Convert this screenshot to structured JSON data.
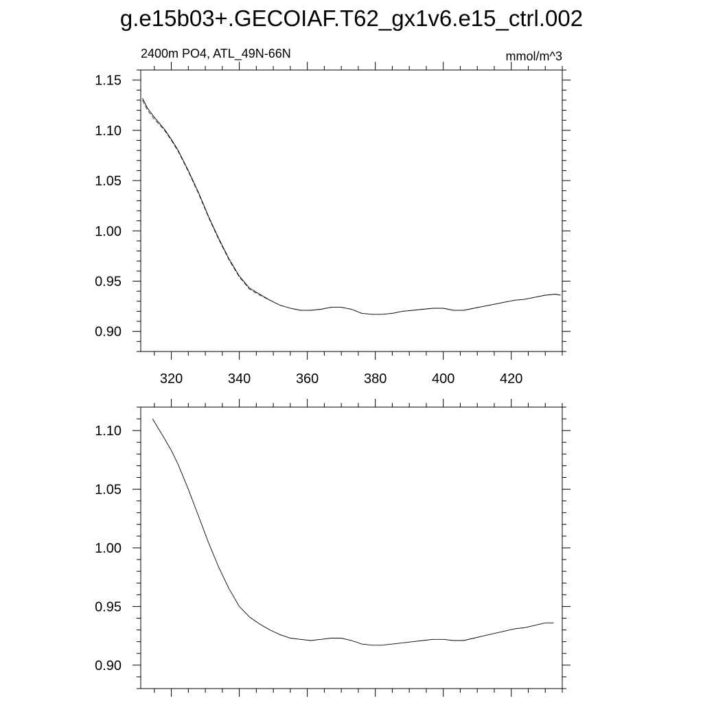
{
  "title": "g.e15b03+.GECOIAF.T62_gx1v6.e15_ctrl.002",
  "chart_data": [
    {
      "type": "line",
      "left_label": "2400m PO4, ATL_49N-66N",
      "right_label": "mmol/m^3",
      "xlim": [
        311,
        435
      ],
      "ylim": [
        0.88,
        1.16
      ],
      "x_ticks": [
        320,
        340,
        360,
        380,
        400,
        420
      ],
      "x_tick_labels": [
        "320",
        "340",
        "360",
        "380",
        "400",
        "420"
      ],
      "y_ticks": [
        0.9,
        0.95,
        1.0,
        1.05,
        1.1,
        1.15
      ],
      "y_tick_labels": [
        "0.90",
        "0.95",
        "1.00",
        "1.05",
        "1.10",
        "1.15"
      ],
      "grid": false,
      "series": [
        {
          "style": "solid",
          "x": [
            311.5,
            313,
            315,
            318,
            320,
            322,
            325,
            328,
            331,
            334,
            337,
            340,
            343,
            346,
            349,
            352,
            355,
            358,
            361,
            364,
            367,
            370,
            373,
            376,
            379,
            382,
            385,
            388,
            391,
            394,
            397,
            400,
            403,
            406,
            409,
            412,
            415,
            418,
            421,
            424,
            427,
            430,
            433,
            434.5
          ],
          "y": [
            1.132,
            1.122,
            1.113,
            1.101,
            1.091,
            1.08,
            1.06,
            1.038,
            1.014,
            0.992,
            0.972,
            0.955,
            0.943,
            0.937,
            0.931,
            0.926,
            0.923,
            0.921,
            0.921,
            0.922,
            0.924,
            0.924,
            0.922,
            0.918,
            0.917,
            0.917,
            0.918,
            0.92,
            0.921,
            0.922,
            0.923,
            0.923,
            0.921,
            0.921,
            0.923,
            0.925,
            0.927,
            0.929,
            0.931,
            0.932,
            0.934,
            0.936,
            0.937,
            0.936
          ]
        },
        {
          "style": "dashed",
          "x": [
            311.5,
            313,
            315,
            318,
            320,
            322,
            325,
            328,
            331,
            334,
            337,
            340,
            343,
            346,
            349,
            352,
            355,
            358,
            361,
            364,
            367,
            370,
            373,
            376,
            379,
            382,
            385,
            388,
            391,
            394,
            397,
            400,
            403,
            406,
            409,
            412,
            415,
            418,
            421,
            424,
            427,
            430,
            433,
            434.5
          ],
          "y": [
            1.13,
            1.12,
            1.111,
            1.1,
            1.09,
            1.079,
            1.059,
            1.037,
            1.013,
            0.991,
            0.971,
            0.954,
            0.942,
            0.936,
            0.931,
            0.926,
            0.923,
            0.921,
            0.921,
            0.922,
            0.924,
            0.924,
            0.922,
            0.918,
            0.917,
            0.917,
            0.918,
            0.92,
            0.921,
            0.922,
            0.923,
            0.923,
            0.921,
            0.921,
            0.923,
            0.925,
            0.927,
            0.929,
            0.931,
            0.932,
            0.934,
            0.936,
            0.937,
            0.936
          ]
        }
      ]
    },
    {
      "type": "line",
      "xlim": [
        311,
        435
      ],
      "ylim": [
        0.88,
        1.12
      ],
      "x_ticks": [
        320,
        340,
        360,
        380,
        400,
        420
      ],
      "x_tick_labels": [],
      "y_ticks": [
        0.9,
        0.95,
        1.0,
        1.05,
        1.1
      ],
      "y_tick_labels": [
        "0.90",
        "0.95",
        "1.00",
        "1.05",
        "1.10"
      ],
      "grid": false,
      "series": [
        {
          "style": "solid",
          "x": [
            314.5,
            318,
            320,
            322,
            325,
            328,
            331,
            334,
            337,
            340,
            343,
            346,
            349,
            352,
            355,
            358,
            361,
            364,
            367,
            370,
            373,
            376,
            379,
            382,
            385,
            388,
            391,
            394,
            397,
            400,
            403,
            406,
            409,
            412,
            415,
            418,
            421,
            424,
            427,
            430,
            432.5
          ],
          "y": [
            1.11,
            1.093,
            1.083,
            1.071,
            1.05,
            1.027,
            1.004,
            0.983,
            0.965,
            0.95,
            0.941,
            0.935,
            0.93,
            0.926,
            0.923,
            0.922,
            0.921,
            0.922,
            0.923,
            0.923,
            0.921,
            0.918,
            0.917,
            0.917,
            0.918,
            0.919,
            0.92,
            0.921,
            0.922,
            0.922,
            0.921,
            0.921,
            0.923,
            0.925,
            0.927,
            0.929,
            0.931,
            0.932,
            0.934,
            0.936,
            0.936
          ]
        }
      ]
    }
  ]
}
